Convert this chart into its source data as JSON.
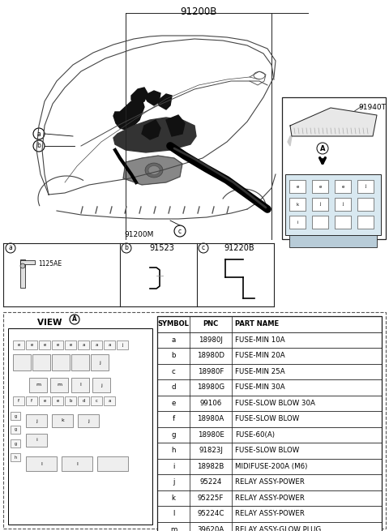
{
  "title": "91200B",
  "bg_color": "#ffffff",
  "labels": {
    "ab_part": "91523",
    "c_part": "91220B",
    "a_sub": "1125AE",
    "main_label": "91200M",
    "fuse_box": "91940T",
    "view_label": "VIEW",
    "view_a": "A"
  },
  "table_headers": [
    "SYMBOL",
    "PNC",
    "PART NAME"
  ],
  "table_rows": [
    [
      "a",
      "18980J",
      "FUSE-MIN 10A"
    ],
    [
      "b",
      "18980D",
      "FUSE-MIN 20A"
    ],
    [
      "c",
      "18980F",
      "FUSE-MIN 25A"
    ],
    [
      "d",
      "18980G",
      "FUSE-MIN 30A"
    ],
    [
      "e",
      "99106",
      "FUSE-SLOW BLOW 30A"
    ],
    [
      "f",
      "18980A",
      "FUSE-SLOW BLOW"
    ],
    [
      "g",
      "18980E",
      "FUSE-60(A)"
    ],
    [
      "h",
      "91823J",
      "FUSE-SLOW BLOW"
    ],
    [
      "i",
      "18982B",
      "MIDIFUSE-200A (M6)"
    ],
    [
      "j",
      "95224",
      "RELAY ASSY-POWER"
    ],
    [
      "k",
      "95225F",
      "RELAY ASSY-POWER"
    ],
    [
      "l",
      "95224C",
      "RELAY ASSY-POWER"
    ],
    [
      "m",
      "39620A",
      "RELAY ASSY-GLOW PLUG"
    ]
  ],
  "tc": "#000000",
  "lc": "#444444",
  "lc2": "#222222"
}
